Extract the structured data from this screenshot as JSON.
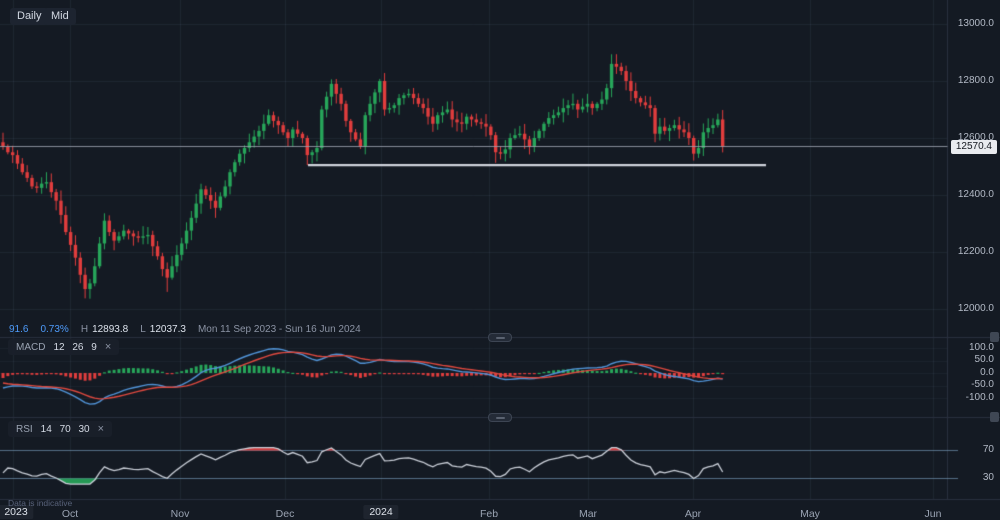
{
  "theme": {
    "bg": "#141a23",
    "grid": "#8296b4",
    "divider": "#29303e",
    "up": "#27a65a",
    "down": "#e13d3d",
    "macd_line": "#5194d8",
    "signal_line": "#e0493f",
    "rsi_line": "#ccd1da",
    "rsi_guide": "#7fa7c8",
    "support_line": "#d0d3dc",
    "price_line": "#9aa1ad",
    "accent_blue": "#4e9bfa"
  },
  "toolbar": {
    "daily": "Daily",
    "mid": "Mid"
  },
  "legend": {
    "value": "91.6",
    "change": "0.73%",
    "high_label": "H",
    "high": "12893.8",
    "low_label": "L",
    "low": "12037.3",
    "range": "Mon 11 Sep 2023 - Sun 16 Jun 2024"
  },
  "macd_legend": {
    "name": "MACD",
    "params": "12 26 9",
    "close": "×"
  },
  "rsi_legend": {
    "name": "RSI",
    "params": "14 70 30",
    "close": "×"
  },
  "axes": {
    "price": [
      "13000.0",
      "12800.0",
      "12600.0",
      "12400.0",
      "12200.0",
      "12000.0"
    ],
    "macd": [
      "100.0",
      "50.0",
      "0.0",
      "-50.0",
      "-100.0"
    ],
    "rsi": [
      "70",
      "30"
    ],
    "time": [
      "2023",
      "Oct",
      "Nov",
      "Dec",
      "2024",
      "Feb",
      "Mar",
      "Apr",
      "May",
      "Jun"
    ]
  },
  "price_badge": "12570.4",
  "footnote": "Data is indicative",
  "chart_data": {
    "type": "candlestick",
    "panels": [
      "price",
      "MACD(12,26,9)",
      "RSI(14)"
    ],
    "timeframe": "Daily",
    "price_ylim": [
      11950,
      13050
    ],
    "price_gridlines": [
      13000,
      12800,
      12600,
      12400,
      12200,
      12000
    ],
    "macd_ylim": [
      -125,
      125
    ],
    "macd_gridlines": [
      100,
      50,
      0,
      -50,
      -100
    ],
    "rsi_guides": [
      70,
      30
    ],
    "stats": {
      "value": 91.6,
      "change_pct": 0.73,
      "high": 12893.8,
      "low": 12037.3
    },
    "current_price": 12570.4,
    "support_line_price": 12505,
    "first_open": 12585,
    "closes": [
      12570,
      12550,
      12540,
      12510,
      12480,
      12460,
      12430,
      12425,
      12440,
      12445,
      12410,
      12380,
      12330,
      12270,
      12225,
      12180,
      12120,
      12070,
      12090,
      12150,
      12230,
      12310,
      12270,
      12240,
      12255,
      12275,
      12265,
      12255,
      12250,
      12255,
      12260,
      12220,
      12185,
      12140,
      12110,
      12150,
      12190,
      12230,
      12275,
      12320,
      12370,
      12420,
      12400,
      12380,
      12355,
      12395,
      12430,
      12480,
      12515,
      12545,
      12565,
      12585,
      12605,
      12625,
      12650,
      12680,
      12660,
      12645,
      12620,
      12600,
      12630,
      12615,
      12600,
      12540,
      12550,
      12565,
      12700,
      12745,
      12790,
      12755,
      12720,
      12660,
      12620,
      12595,
      12570,
      12680,
      12720,
      12760,
      12800,
      12700,
      12705,
      12715,
      12740,
      12750,
      12755,
      12740,
      12720,
      12705,
      12675,
      12650,
      12680,
      12690,
      12700,
      12665,
      12655,
      12650,
      12675,
      12665,
      12655,
      12650,
      12640,
      12610,
      12550,
      12545,
      12560,
      12600,
      12610,
      12615,
      12595,
      12570,
      12600,
      12625,
      12650,
      12670,
      12680,
      12690,
      12705,
      12715,
      12720,
      12700,
      12710,
      12720,
      12705,
      12720,
      12735,
      12775,
      12860,
      12850,
      12835,
      12800,
      12765,
      12740,
      12725,
      12715,
      12705,
      12615,
      12640,
      12625,
      12635,
      12645,
      12630,
      12620,
      12600,
      12545,
      12565,
      12620,
      12635,
      12645,
      12665,
      12570.4
    ],
    "low_overrides": {
      "17": 12037.3,
      "34": 12060,
      "63": 12505,
      "102": 12513,
      "143": 12521
    },
    "high_overrides": {
      "126": 12893.8
    }
  }
}
